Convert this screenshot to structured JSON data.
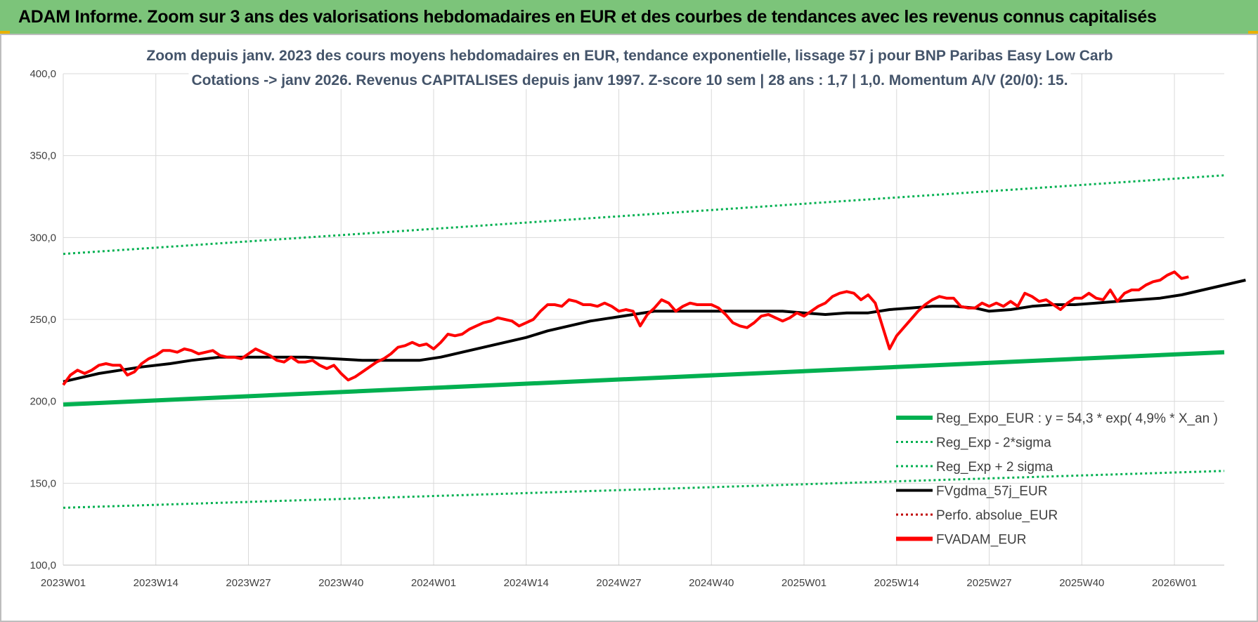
{
  "header": {
    "title": "ADAM Informe. Zoom sur 3 ans des valorisations hebdomadaires en EUR et des courbes de tendances avec les revenus connus capitalisés"
  },
  "chart_data": {
    "type": "line",
    "title": "Zoom depuis janv. 2023 des cours moyens hebdomadaires en EUR, tendance exponentielle, lissage 57 j pour BNP Paribas Easy Low Carb",
    "subtitle": "Cotations -> janv 2026. Revenus CAPITALISES depuis janv 1997. Z-score 10 sem | 28 ans : 1,7 | 1,0. Momentum A/V (20/0): 15.",
    "xlabel": "",
    "ylabel": "",
    "ylim": [
      100,
      400
    ],
    "yticks": [
      "100,0",
      "150,0",
      "200,0",
      "250,0",
      "300,0",
      "350,0",
      "400,0"
    ],
    "xticks": [
      "2023W01",
      "2023W14",
      "2023W27",
      "2023W40",
      "2024W01",
      "2024W14",
      "2024W27",
      "2024W40",
      "2025W01",
      "2025W14",
      "2025W27",
      "2025W40",
      "2026W01"
    ],
    "x_range_weeks": [
      0,
      163
    ],
    "grid": true,
    "legend_position": "bottom-right",
    "colors": {
      "trend": "#00b050",
      "band": "#00b050",
      "smooth": "#000000",
      "perf": "#c00000",
      "adam": "#ff0000",
      "title": "#44546a",
      "banner": "#7cc47a"
    },
    "series": [
      {
        "name": "Reg_Expo_EUR : y = 54,3 * exp( 4,9% *  X_an )",
        "style": "thick-solid",
        "color": "#00b050",
        "points": [
          [
            0,
            198
          ],
          [
            163,
            230
          ]
        ]
      },
      {
        "name": "Reg_Exp - 2*sigma",
        "style": "dotted",
        "color": "#00b050",
        "points": [
          [
            0,
            135
          ],
          [
            163,
            157.5
          ]
        ]
      },
      {
        "name": "Reg_Exp + 2 sigma",
        "style": "dotted",
        "color": "#00b050",
        "points": [
          [
            0,
            290
          ],
          [
            163,
            338
          ]
        ]
      },
      {
        "name": "FVgdma_57j_EUR",
        "style": "solid",
        "color": "#000000",
        "points": [
          [
            0,
            212
          ],
          [
            5,
            217
          ],
          [
            8,
            219
          ],
          [
            11,
            221
          ],
          [
            15,
            223
          ],
          [
            18,
            225
          ],
          [
            22,
            227
          ],
          [
            26,
            227
          ],
          [
            30,
            227
          ],
          [
            34,
            227
          ],
          [
            38,
            226
          ],
          [
            42,
            225
          ],
          [
            46,
            225
          ],
          [
            50,
            225
          ],
          [
            53,
            227
          ],
          [
            56,
            230
          ],
          [
            59,
            233
          ],
          [
            62,
            236
          ],
          [
            65,
            239
          ],
          [
            68,
            243
          ],
          [
            71,
            246
          ],
          [
            74,
            249
          ],
          [
            77,
            251
          ],
          [
            80,
            253
          ],
          [
            83,
            255
          ],
          [
            86,
            255
          ],
          [
            89,
            255
          ],
          [
            92,
            255
          ],
          [
            95,
            255
          ],
          [
            98,
            255
          ],
          [
            101,
            255
          ],
          [
            104,
            254
          ],
          [
            107,
            253
          ],
          [
            110,
            254
          ],
          [
            113,
            254
          ],
          [
            116,
            256
          ],
          [
            119,
            257
          ],
          [
            122,
            258
          ],
          [
            125,
            258
          ],
          [
            128,
            257
          ],
          [
            130,
            255
          ],
          [
            133,
            256
          ],
          [
            136,
            258
          ],
          [
            139,
            259
          ],
          [
            142,
            259
          ],
          [
            145,
            260
          ],
          [
            148,
            261
          ],
          [
            151,
            262
          ],
          [
            154,
            263
          ],
          [
            157,
            265
          ],
          [
            160,
            268
          ],
          [
            163,
            271
          ],
          [
            166,
            274
          ]
        ]
      },
      {
        "name": "Perfo. absolue_EUR",
        "style": "dotted",
        "color": "#c00000",
        "points": []
      },
      {
        "name": "FVADAM_EUR",
        "style": "thick-solid",
        "color": "#ff0000",
        "points": [
          [
            0,
            210
          ],
          [
            1,
            216
          ],
          [
            2,
            219
          ],
          [
            3,
            217
          ],
          [
            4,
            219
          ],
          [
            5,
            222
          ],
          [
            6,
            223
          ],
          [
            7,
            222
          ],
          [
            8,
            222
          ],
          [
            9,
            216
          ],
          [
            10,
            218
          ],
          [
            11,
            223
          ],
          [
            12,
            226
          ],
          [
            13,
            228
          ],
          [
            14,
            231
          ],
          [
            15,
            231
          ],
          [
            16,
            230
          ],
          [
            17,
            232
          ],
          [
            18,
            231
          ],
          [
            19,
            229
          ],
          [
            20,
            230
          ],
          [
            21,
            231
          ],
          [
            22,
            228
          ],
          [
            23,
            227
          ],
          [
            24,
            227
          ],
          [
            25,
            226
          ],
          [
            26,
            229
          ],
          [
            27,
            232
          ],
          [
            28,
            230
          ],
          [
            29,
            228
          ],
          [
            30,
            225
          ],
          [
            31,
            224
          ],
          [
            32,
            227
          ],
          [
            33,
            224
          ],
          [
            34,
            224
          ],
          [
            35,
            225
          ],
          [
            36,
            222
          ],
          [
            37,
            220
          ],
          [
            38,
            222
          ],
          [
            39,
            217
          ],
          [
            40,
            213
          ],
          [
            41,
            215
          ],
          [
            42,
            218
          ],
          [
            43,
            221
          ],
          [
            44,
            224
          ],
          [
            45,
            226
          ],
          [
            46,
            229
          ],
          [
            47,
            233
          ],
          [
            48,
            234
          ],
          [
            49,
            236
          ],
          [
            50,
            234
          ],
          [
            51,
            235
          ],
          [
            52,
            232
          ],
          [
            53,
            236
          ],
          [
            54,
            241
          ],
          [
            55,
            240
          ],
          [
            56,
            241
          ],
          [
            57,
            244
          ],
          [
            58,
            246
          ],
          [
            59,
            248
          ],
          [
            60,
            249
          ],
          [
            61,
            251
          ],
          [
            62,
            250
          ],
          [
            63,
            249
          ],
          [
            64,
            246
          ],
          [
            65,
            248
          ],
          [
            66,
            250
          ],
          [
            67,
            255
          ],
          [
            68,
            259
          ],
          [
            69,
            259
          ],
          [
            70,
            258
          ],
          [
            71,
            262
          ],
          [
            72,
            261
          ],
          [
            73,
            259
          ],
          [
            74,
            259
          ],
          [
            75,
            258
          ],
          [
            76,
            260
          ],
          [
            77,
            258
          ],
          [
            78,
            255
          ],
          [
            79,
            256
          ],
          [
            80,
            255
          ],
          [
            81,
            246
          ],
          [
            82,
            253
          ],
          [
            83,
            257
          ],
          [
            84,
            262
          ],
          [
            85,
            260
          ],
          [
            86,
            255
          ],
          [
            87,
            258
          ],
          [
            88,
            260
          ],
          [
            89,
            259
          ],
          [
            90,
            259
          ],
          [
            91,
            259
          ],
          [
            92,
            257
          ],
          [
            93,
            253
          ],
          [
            94,
            248
          ],
          [
            95,
            246
          ],
          [
            96,
            245
          ],
          [
            97,
            248
          ],
          [
            98,
            252
          ],
          [
            99,
            253
          ],
          [
            100,
            251
          ],
          [
            101,
            249
          ],
          [
            102,
            251
          ],
          [
            103,
            254
          ],
          [
            104,
            252
          ],
          [
            105,
            255
          ],
          [
            106,
            258
          ],
          [
            107,
            260
          ],
          [
            108,
            264
          ],
          [
            109,
            266
          ],
          [
            110,
            267
          ],
          [
            111,
            266
          ],
          [
            112,
            262
          ],
          [
            113,
            265
          ],
          [
            114,
            260
          ],
          [
            115,
            246
          ],
          [
            116,
            232
          ],
          [
            117,
            240
          ],
          [
            118,
            245
          ],
          [
            119,
            250
          ],
          [
            120,
            255
          ],
          [
            121,
            259
          ],
          [
            122,
            262
          ],
          [
            123,
            264
          ],
          [
            124,
            263
          ],
          [
            125,
            263
          ],
          [
            126,
            258
          ],
          [
            127,
            257
          ],
          [
            128,
            257
          ],
          [
            129,
            260
          ],
          [
            130,
            258
          ],
          [
            131,
            260
          ],
          [
            132,
            258
          ],
          [
            133,
            261
          ],
          [
            134,
            258
          ],
          [
            135,
            266
          ],
          [
            136,
            264
          ],
          [
            137,
            261
          ],
          [
            138,
            262
          ],
          [
            139,
            259
          ],
          [
            140,
            256
          ],
          [
            141,
            260
          ],
          [
            142,
            263
          ],
          [
            143,
            263
          ],
          [
            144,
            266
          ],
          [
            145,
            263
          ],
          [
            146,
            262
          ],
          [
            147,
            268
          ],
          [
            148,
            261
          ],
          [
            149,
            266
          ],
          [
            150,
            268
          ],
          [
            151,
            268
          ],
          [
            152,
            271
          ],
          [
            153,
            273
          ],
          [
            154,
            274
          ],
          [
            155,
            277
          ],
          [
            156,
            279
          ],
          [
            157,
            275
          ],
          [
            158,
            276
          ]
        ]
      }
    ]
  }
}
